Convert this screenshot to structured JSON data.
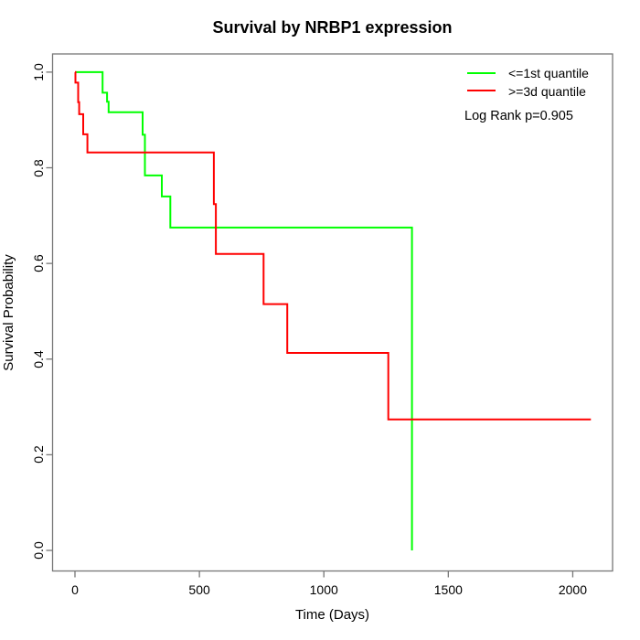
{
  "title": "Survival by NRBP1 expression",
  "x_axis": {
    "label": "Time (Days)"
  },
  "y_axis": {
    "label": "Survival Probability"
  },
  "legend": {
    "items": [
      {
        "label": "<=1st quantile",
        "color": "#00ff00"
      },
      {
        "label": ">=3d quantile",
        "color": "#ff0000"
      }
    ],
    "note": "Log Rank p=0.905"
  },
  "chart_data": {
    "type": "line",
    "variant": "kaplan-meier-step",
    "title": "Survival by NRBP1 expression",
    "xlabel": "Time (Days)",
    "ylabel": "Survival Probability",
    "x_ticks": {
      "values": [
        0,
        500,
        1000,
        1500,
        2000
      ],
      "labels": [
        "0",
        "500",
        "1000",
        "1500",
        "2000"
      ]
    },
    "y_ticks": {
      "values": [
        0,
        0.2,
        0.4,
        0.6,
        0.8,
        1
      ],
      "labels": [
        "0.0",
        "0.2",
        "0.4",
        "0.6",
        "0.8",
        "1.0"
      ]
    },
    "xlim": [
      -90,
      2160
    ],
    "ylim": [
      -0.043,
      1.038
    ],
    "grid": false,
    "legend_position": "top-right",
    "annotation": "Log Rank p=0.905",
    "axis_color": "#777777",
    "series": [
      {
        "name": "<=1st quantile",
        "color": "#00ff00",
        "steps": [
          [
            0,
            1.0
          ],
          [
            111,
            0.957
          ],
          [
            129,
            0.938
          ],
          [
            135,
            0.916
          ],
          [
            272,
            0.869
          ],
          [
            281,
            0.784
          ],
          [
            349,
            0.74
          ],
          [
            383,
            0.675
          ],
          [
            1354,
            0.0
          ]
        ],
        "end_time": 1354
      },
      {
        "name": ">=3d quantile",
        "color": "#ff0000",
        "steps": [
          [
            0,
            1.0
          ],
          [
            2,
            0.978
          ],
          [
            13,
            0.937
          ],
          [
            17,
            0.912
          ],
          [
            33,
            0.87
          ],
          [
            50,
            0.832
          ],
          [
            558,
            0.724
          ],
          [
            566,
            0.62
          ],
          [
            758,
            0.515
          ],
          [
            853,
            0.413
          ],
          [
            1259,
            0.274
          ]
        ],
        "end_time": 2073
      }
    ]
  }
}
